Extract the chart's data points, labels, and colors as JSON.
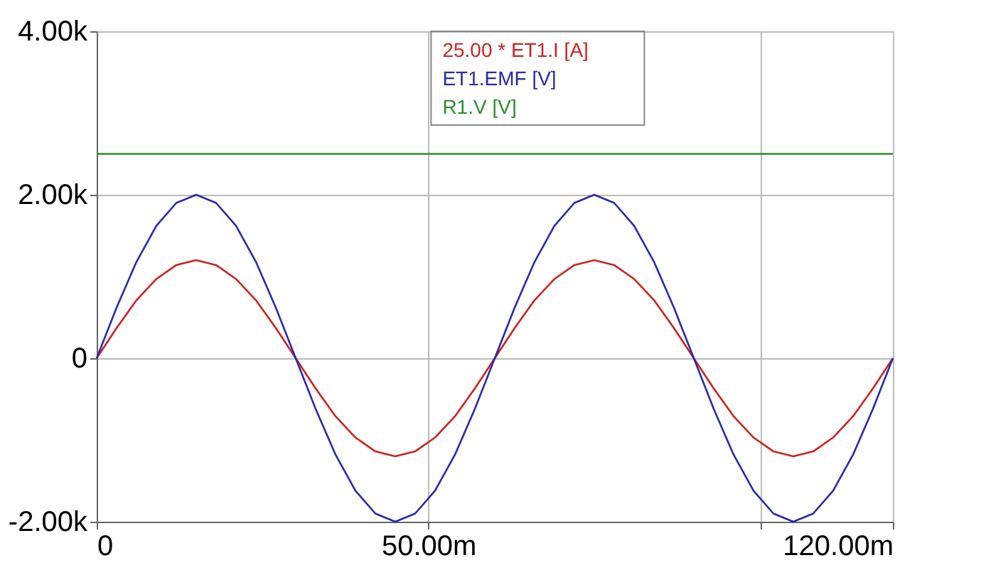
{
  "chart_data": {
    "type": "line",
    "x": [
      0,
      3,
      6,
      9,
      12,
      15,
      18,
      21,
      24,
      27,
      30,
      33,
      36,
      39,
      42,
      45,
      48,
      51,
      54,
      57,
      60,
      63,
      66,
      69,
      72,
      75,
      78,
      81,
      84,
      87,
      90,
      93,
      96,
      99,
      102,
      105,
      108,
      111,
      114,
      117,
      120
    ],
    "series": [
      {
        "name": "25.00 * ET1.I [A]",
        "color": "#cc2222",
        "values": [
          0,
          370,
          710,
          970,
          1140,
          1200,
          1140,
          970,
          710,
          370,
          0,
          -370,
          -710,
          -970,
          -1140,
          -1200,
          -1140,
          -970,
          -710,
          -370,
          0,
          370,
          710,
          970,
          1140,
          1200,
          1140,
          970,
          710,
          370,
          0,
          -370,
          -710,
          -970,
          -1140,
          -1200,
          -1140,
          -970,
          -710,
          -370,
          0
        ]
      },
      {
        "name": "ET1.EMF [V]",
        "color": "#2a2aa8",
        "values": [
          0,
          620,
          1180,
          1620,
          1900,
          2000,
          1900,
          1620,
          1180,
          620,
          0,
          -620,
          -1180,
          -1620,
          -1900,
          -2000,
          -1900,
          -1620,
          -1180,
          -620,
          0,
          620,
          1180,
          1620,
          1900,
          2000,
          1900,
          1620,
          1180,
          620,
          0,
          -620,
          -1180,
          -1620,
          -1900,
          -2000,
          -1900,
          -1620,
          -1180,
          -620,
          0
        ]
      },
      {
        "name": "R1.V [V]",
        "color": "#2e8b2e",
        "values": [
          2500,
          2500,
          2500,
          2500,
          2500,
          2500,
          2500,
          2500,
          2500,
          2500,
          2500,
          2500,
          2500,
          2500,
          2500,
          2500,
          2500,
          2500,
          2500,
          2500,
          2500,
          2500,
          2500,
          2500,
          2500,
          2500,
          2500,
          2500,
          2500,
          2500,
          2500,
          2500,
          2500,
          2500,
          2500,
          2500,
          2500,
          2500,
          2500,
          2500,
          2500
        ]
      }
    ],
    "xlim": [
      0,
      120
    ],
    "xticks": [
      0,
      {
        "value": 50,
        "label": "50.00m"
      },
      {
        "value": 100,
        "label": null
      },
      {
        "value": 120,
        "label": "120.00m"
      }
    ],
    "ylim": [
      -2000,
      4000
    ],
    "yticks": [
      {
        "value": -2000,
        "label": "-2.00k"
      },
      0,
      {
        "value": 2000,
        "label": "2.00k"
      },
      {
        "value": 4000,
        "label": "4.00k"
      }
    ],
    "grid": true,
    "legend": "top",
    "marker": "none",
    "line_style": "solid"
  }
}
